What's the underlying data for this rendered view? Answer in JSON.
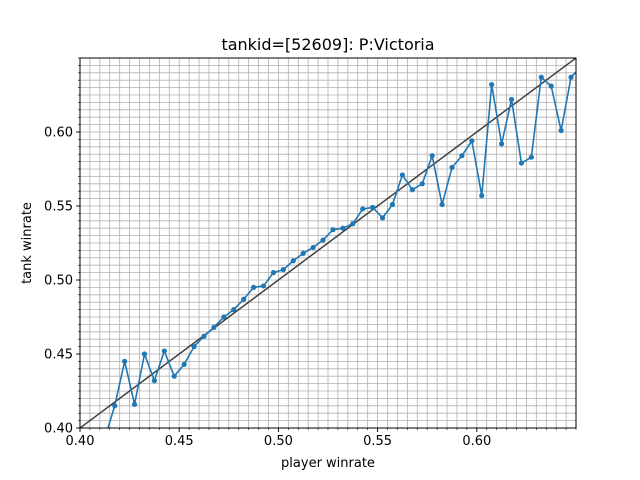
{
  "chart_data": {
    "type": "line",
    "title": "tankid=[52609]: P:Victoria",
    "xlabel": "player winrate",
    "ylabel": "tank winrate",
    "xlim": [
      0.4,
      0.65
    ],
    "ylim": [
      0.4,
      0.65
    ],
    "x_ticks": [
      0.4,
      0.45,
      0.5,
      0.55,
      0.6
    ],
    "y_ticks": [
      0.4,
      0.45,
      0.5,
      0.55,
      0.6
    ],
    "x_tick_labels": [
      "0.40",
      "0.45",
      "0.50",
      "0.55",
      "0.60"
    ],
    "y_tick_labels": [
      "0.40",
      "0.45",
      "0.50",
      "0.55",
      "0.60"
    ],
    "minor_step": 0.005,
    "grid": true,
    "reference_line": {
      "x": [
        0.4,
        0.65
      ],
      "y": [
        0.4,
        0.65
      ],
      "color": "#404040"
    },
    "series": [
      {
        "color": "#1f77b4",
        "x": [
          0.4125,
          0.4175,
          0.4225,
          0.4275,
          0.4325,
          0.4375,
          0.4425,
          0.4475,
          0.4525,
          0.4575,
          0.4625,
          0.4675,
          0.4725,
          0.4775,
          0.4825,
          0.4875,
          0.4925,
          0.4975,
          0.5025,
          0.5075,
          0.5125,
          0.5175,
          0.5225,
          0.5275,
          0.5325,
          0.5375,
          0.5425,
          0.5475,
          0.5525,
          0.5575,
          0.5625,
          0.5675,
          0.5725,
          0.5775,
          0.5825,
          0.5875,
          0.5925,
          0.5975,
          0.6025,
          0.6075,
          0.6125,
          0.6175,
          0.6225,
          0.6275,
          0.6325,
          0.6375,
          0.6425,
          0.6475,
          0.6525
        ],
        "y": [
          0.393,
          0.415,
          0.445,
          0.416,
          0.45,
          0.432,
          0.452,
          0.435,
          0.443,
          0.455,
          0.462,
          0.468,
          0.475,
          0.48,
          0.487,
          0.495,
          0.496,
          0.505,
          0.507,
          0.513,
          0.518,
          0.522,
          0.527,
          0.534,
          0.535,
          0.538,
          0.548,
          0.549,
          0.542,
          0.551,
          0.571,
          0.561,
          0.565,
          0.584,
          0.551,
          0.576,
          0.584,
          0.594,
          0.557,
          0.632,
          0.592,
          0.622,
          0.579,
          0.583,
          0.637,
          0.631,
          0.601,
          0.637,
          0.644
        ]
      }
    ]
  }
}
